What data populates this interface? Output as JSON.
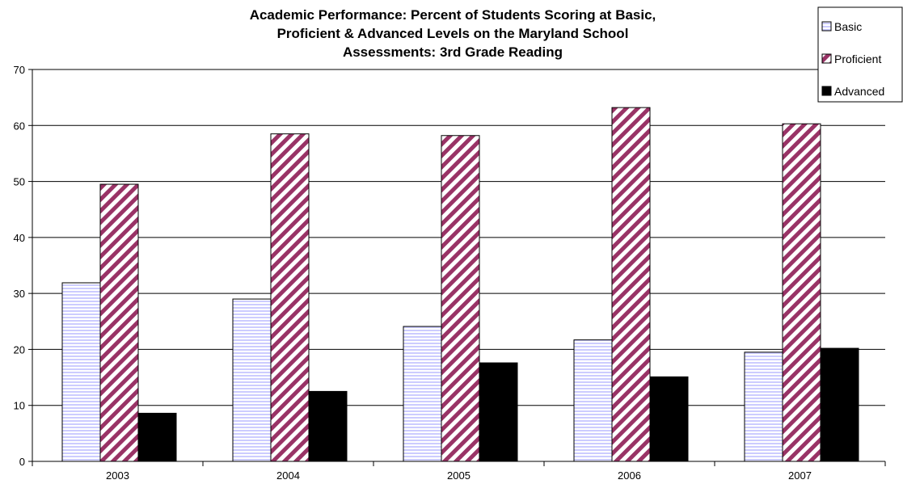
{
  "chart_data": {
    "type": "bar",
    "title_lines": [
      "Academic Performance: Percent of Students Scoring at Basic,",
      "Proficient & Advanced Levels on the Maryland School",
      "Assessments: 3rd Grade Reading"
    ],
    "categories": [
      "2003",
      "2004",
      "2005",
      "2006",
      "2007"
    ],
    "series": [
      {
        "name": "Basic",
        "values": [
          31.9,
          29.0,
          24.1,
          21.7,
          19.5
        ],
        "color": "#ccccff",
        "pattern": "horizontal-stripes"
      },
      {
        "name": "Proficient",
        "values": [
          49.5,
          58.5,
          58.2,
          63.2,
          60.3
        ],
        "color": "#993366",
        "pattern": "diagonal-stripes"
      },
      {
        "name": "Advanced",
        "values": [
          8.6,
          12.5,
          17.6,
          15.1,
          20.2
        ],
        "color": "#000000",
        "pattern": "solid"
      }
    ],
    "ylim": [
      0,
      70
    ],
    "yticks": [
      "0",
      "10",
      "20",
      "30",
      "40",
      "50",
      "60",
      "70"
    ],
    "grid": true,
    "legend_position": "top-right"
  }
}
